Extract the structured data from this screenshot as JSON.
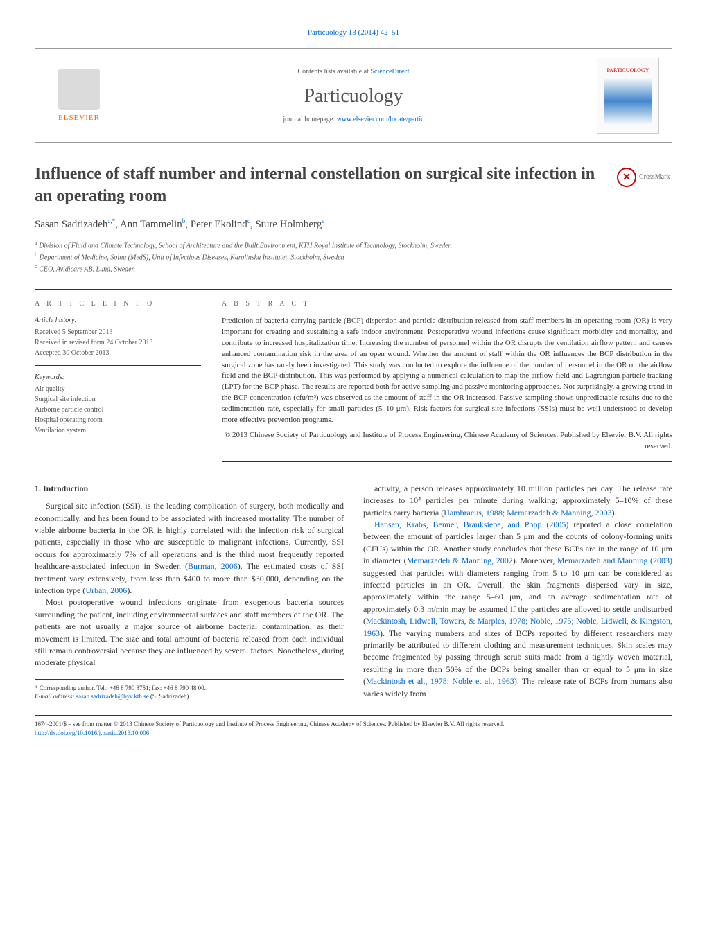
{
  "journal_ref": "Particuology 13 (2014) 42–51",
  "header": {
    "contents_prefix": "Contents lists available at ",
    "contents_link": "ScienceDirect",
    "journal_name": "Particuology",
    "homepage_prefix": "journal homepage: ",
    "homepage_link": "www.elsevier.com/locate/partic",
    "publisher_logo_text": "ELSEVIER",
    "cover_title": "PARTICUOLOGY"
  },
  "crossmark_label": "CrossMark",
  "title": "Influence of staff number and internal constellation on surgical site infection in an operating room",
  "authors_html": "Sasan Sadrizadeh<sup>a,*</sup>, Ann Tammelin<sup>b</sup>, Peter Ekolind<sup>c</sup>, Sture Holmberg<sup>a</sup>",
  "affiliations": {
    "a": "Division of Fluid and Climate Technology, School of Architecture and the Built Environment, KTH Royal Institute of Technology, Stockholm, Sweden",
    "b": "Department of Medicine, Solna (MedS), Unit of Infectious Diseases, Karolinska Institutet, Stockholm, Sweden",
    "c": "CEO, Avidicare AB, Lund, Sweden"
  },
  "article_info": {
    "heading": "a r t i c l e   i n f o",
    "history_label": "Article history:",
    "received": "Received 5 September 2013",
    "revised": "Received in revised form 24 October 2013",
    "accepted": "Accepted 30 October 2013",
    "keywords_label": "Keywords:",
    "keywords": [
      "Air quality",
      "Surgical site infection",
      "Airborne particle control",
      "Hospital operating room",
      "Ventilation system"
    ]
  },
  "abstract": {
    "heading": "a b s t r a c t",
    "text": "Prediction of bacteria-carrying particle (BCP) dispersion and particle distribution released from staff members in an operating room (OR) is very important for creating and sustaining a safe indoor environment. Postoperative wound infections cause significant morbidity and mortality, and contribute to increased hospitalization time. Increasing the number of personnel within the OR disrupts the ventilation airflow pattern and causes enhanced contamination risk in the area of an open wound. Whether the amount of staff within the OR influences the BCP distribution in the surgical zone has rarely been investigated. This study was conducted to explore the influence of the number of personnel in the OR on the airflow field and the BCP distribution. This was performed by applying a numerical calculation to map the airflow field and Lagrangian particle tracking (LPT) for the BCP phase. The results are reported both for active sampling and passive monitoring approaches. Not surprisingly, a growing trend in the BCP concentration (cfu/m³) was observed as the amount of staff in the OR increased. Passive sampling shows unpredictable results due to the sedimentation rate, especially for small particles (5–10 μm). Risk factors for surgical site infections (SSIs) must be well understood to develop more effective prevention programs.",
    "copyright": "© 2013 Chinese Society of Particuology and Institute of Process Engineering, Chinese Academy of Sciences. Published by Elsevier B.V. All rights reserved."
  },
  "body": {
    "section_number": "1.",
    "section_title": "Introduction",
    "p1": "Surgical site infection (SSI), is the leading complication of surgery, both medically and economically, and has been found to be associated with increased mortality. The number of viable airborne bacteria in the OR is highly correlated with the infection risk of surgical patients, especially in those who are susceptible to malignant infections. Currently, SSI occurs for approximately 7% of all operations and is the third most frequently reported healthcare-associated infection in Sweden (",
    "p1_cite1": "Burman, 2006",
    "p1_cont": "). The estimated costs of SSI treatment vary extensively, from less than $400 to more than $30,000, depending on the infection type (",
    "p1_cite2": "Urban, 2006",
    "p1_end": ").",
    "p2": "Most postoperative wound infections originate from exogenous bacteria sources surrounding the patient, including environmental surfaces and staff members of the OR. The patients are not usually a major source of airborne bacterial contamination, as their movement is limited. The size and total amount of bacteria released from each individual still remain controversial because they are influenced by several factors. Nonetheless, during moderate physical",
    "p3": "activity, a person releases approximately 10 million particles per day. The release rate increases to 10⁴ particles per minute during walking; approximately 5–10% of these particles carry bacteria (",
    "p3_cite": "Hambraeus, 1988; Memarzadeh & Manning, 2003",
    "p3_end": ").",
    "p4_cite1": "Hansen, Krabs, Benner, Brauksiepe, and Popp (2005)",
    "p4_a": " reported a close correlation between the amount of particles larger than 5 μm and the counts of colony-forming units (CFUs) within the OR. Another study concludes that these BCPs are in the range of 10 μm in diameter (",
    "p4_cite2": "Memarzadeh & Manning, 2002",
    "p4_b": "). Moreover, ",
    "p4_cite3": "Memarzadeh and Manning (2003)",
    "p4_c": " suggested that particles with diameters ranging from 5 to 10 μm can be considered as infected particles in an OR. Overall, the skin fragments dispersed vary in size, approximately within the range 5–60 μm, and an average sedimentation rate of approximately 0.3 m/min may be assumed if the particles are allowed to settle undisturbed (",
    "p4_cite4": "Mackintosh, Lidwell, Towers, & Marples, 1978; Noble, 1975; Noble, Lidwell, & Kingston, 1963",
    "p4_d": "). The varying numbers and sizes of BCPs reported by different researchers may primarily be attributed to different clothing and measurement techniques. Skin scales may become fragmented by passing through scrub suits made from a tightly woven material, resulting in more than 50% of the BCPs being smaller than or equal to 5 μm in size (",
    "p4_cite5": "Mackintosh et al., 1978; Noble et al., 1963",
    "p4_e": "). The release rate of BCPs from humans also varies widely from"
  },
  "footnote": {
    "corresponding": "* Corresponding author. Tel.: +46 8 790 8751; fax: +46 8 790 48 00.",
    "email_label": "E-mail address: ",
    "email": "sasan.sadrizadeh@byv.kth.se",
    "email_suffix": " (S. Sadrizadeh)."
  },
  "footer": {
    "issn": "1674-2001/$ – see front matter © 2013 Chinese Society of Particuology and Institute of Process Engineering, Chinese Academy of Sciences. Published by Elsevier B.V. All rights reserved.",
    "doi_link": "http://dx.doi.org/10.1016/j.partic.2013.10.006"
  },
  "colors": {
    "link": "#0066cc",
    "accent": "#ff6600",
    "border": "#333333",
    "text": "#333333",
    "crossmark": "#cc0000"
  }
}
